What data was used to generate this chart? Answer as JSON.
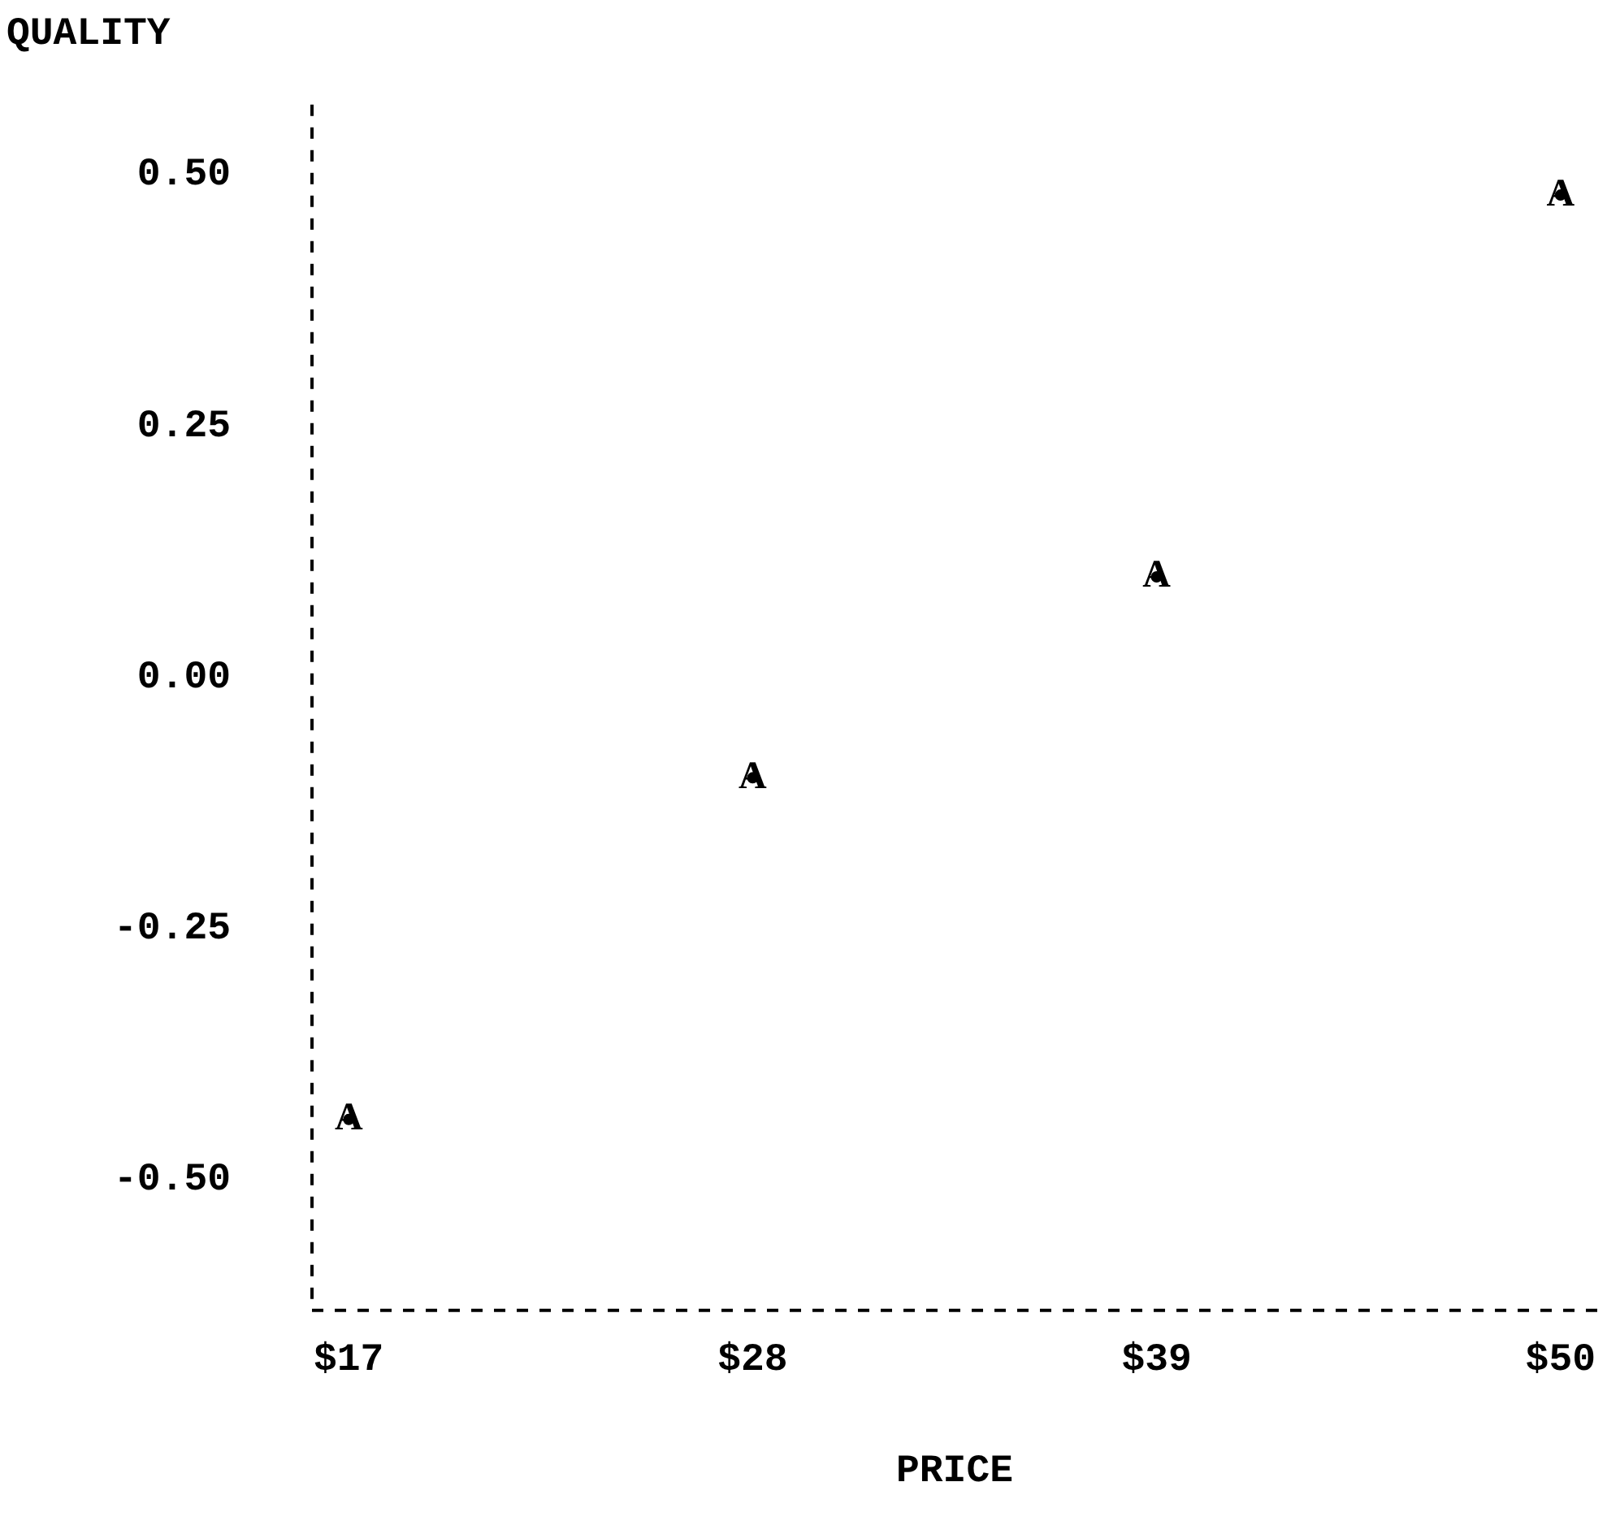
{
  "chart_data": {
    "type": "scatter",
    "xlabel": "PRICE",
    "ylabel": "QUALITY",
    "x": [
      17,
      28,
      39,
      50
    ],
    "series": [
      {
        "name": "A",
        "color": "#000000",
        "values": [
          -0.44,
          -0.1,
          0.1,
          0.48
        ]
      }
    ],
    "xlim": [
      16,
      51
    ],
    "xticks": [
      {
        "value": 17,
        "label": "$17"
      },
      {
        "value": 28,
        "label": "$28"
      },
      {
        "value": 39,
        "label": "$39"
      },
      {
        "value": 50,
        "label": "$50"
      }
    ],
    "ylim": [
      -0.63,
      0.57
    ],
    "yticks": [
      {
        "value": -0.5,
        "label": "-0.50"
      },
      {
        "value": -0.25,
        "label": "-0.25"
      },
      {
        "value": 0,
        "label": "0.00"
      },
      {
        "value": 0.25,
        "label": "0.25"
      },
      {
        "value": 0.5,
        "label": "0.50"
      }
    ],
    "grid": false,
    "legend": false,
    "line_style": "dashed"
  }
}
